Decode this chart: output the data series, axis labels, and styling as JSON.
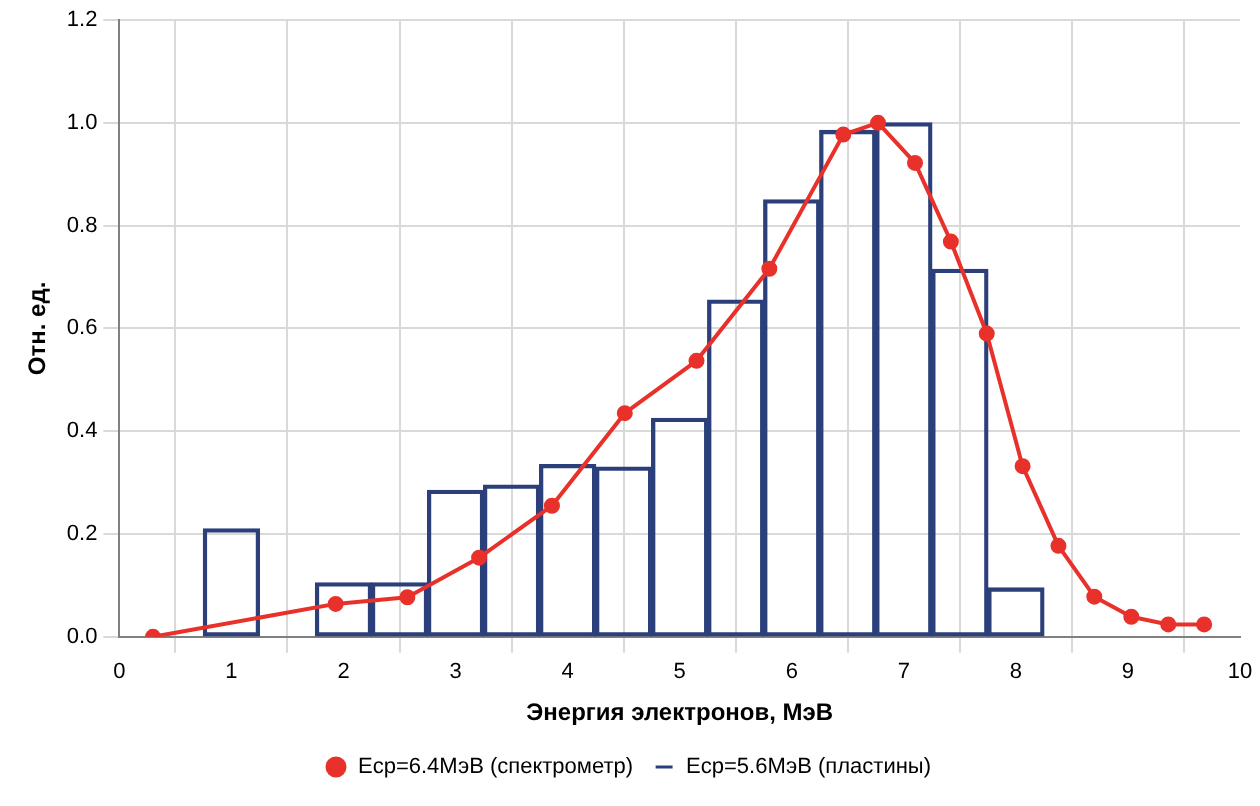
{
  "chart_data": {
    "type": "bar",
    "xlabel": "Энергия электронов, МэВ",
    "ylabel": "Отн. ед.",
    "xlim": [
      0,
      10
    ],
    "xticks": [
      0,
      1,
      2,
      3,
      4,
      5,
      6,
      7,
      8,
      9,
      10
    ],
    "ylim": [
      0,
      1.2
    ],
    "yticks": [
      {
        "value": 0,
        "label": "0.0"
      },
      {
        "value": 0.2,
        "label": "0.2"
      },
      {
        "value": 0.4,
        "label": "0.4"
      },
      {
        "value": 0.6,
        "label": "0.6"
      },
      {
        "value": 0.8,
        "label": "0.8"
      },
      {
        "value": 1.0,
        "label": "1.0"
      },
      {
        "value": 1.2,
        "label": "1.2"
      }
    ],
    "grid": true,
    "legend": "bottom",
    "series": [
      {
        "name": "Eср=6.4МэВ (спектрометр)",
        "type": "line",
        "color": "#e8312a",
        "marker": "circle",
        "x": [
          0.3,
          1.93,
          2.57,
          3.21,
          3.86,
          4.51,
          5.15,
          5.8,
          6.46,
          6.77,
          7.1,
          7.42,
          7.74,
          8.06,
          8.38,
          8.7,
          9.03,
          9.36,
          9.68
        ],
        "values": [
          0,
          0.064,
          0.077,
          0.154,
          0.255,
          0.435,
          0.537,
          0.716,
          0.977,
          1.0,
          0.922,
          0.769,
          0.59,
          0.332,
          0.177,
          0.078,
          0.039,
          0.024,
          0.024
        ]
      },
      {
        "name": "Eср=5.6МэВ (пластины)",
        "color": "#2b3f7a",
        "x": [
          1,
          1.5,
          2,
          2.5,
          3,
          3.5,
          4,
          4.5,
          5,
          5.5,
          6,
          6.5,
          7,
          7.5,
          8,
          8.5,
          9
        ],
        "values": [
          0.21,
          0,
          0.105,
          0.105,
          0.285,
          0.295,
          0.335,
          0.33,
          0.425,
          0.655,
          0.85,
          0.985,
          1.0,
          0.715,
          0.095,
          0,
          0
        ]
      }
    ]
  }
}
